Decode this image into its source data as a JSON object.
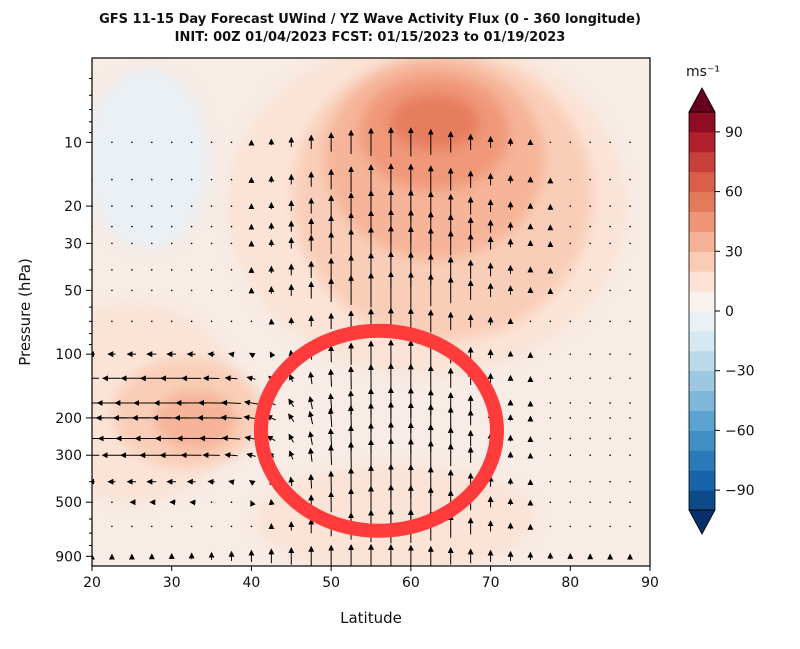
{
  "chart_data": {
    "type": "heatmap",
    "title": "GFS 11-15 Day Forecast UWind / YZ Wave Activity Flux (0 - 360 longitude)",
    "subtitle": "INIT: 00Z 01/04/2023    FCST: 01/15/2023 to 01/19/2023",
    "xlabel": "Latitude",
    "ylabel": "Pressure (hPa)",
    "x_ticks": [
      "20",
      "30",
      "40",
      "50",
      "60",
      "70",
      "80",
      "90"
    ],
    "xlim": [
      20,
      90
    ],
    "y_ticks": [
      {
        "value": 10,
        "label": "10"
      },
      {
        "value": 20,
        "label": "20"
      },
      {
        "value": 30,
        "label": "30"
      },
      {
        "value": 50,
        "label": "50"
      },
      {
        "value": 100,
        "label": "100"
      },
      {
        "value": 200,
        "label": "200"
      },
      {
        "value": 300,
        "label": "300"
      },
      {
        "value": 500,
        "label": "500"
      },
      {
        "value": 900,
        "label": "900"
      }
    ],
    "ylim": [
      1000,
      4
    ],
    "y_scale": "log",
    "colorbar": {
      "unit": "ms⁻¹",
      "range": [
        -100,
        100
      ],
      "ticks": [
        "90",
        "60",
        "30",
        "0",
        "−30",
        "−60",
        "−90"
      ]
    },
    "u_wind_maxima": [
      {
        "lat": 63,
        "p": 8,
        "value": 60
      },
      {
        "lat": 33,
        "p": 200,
        "value": 45
      },
      {
        "lat": 20,
        "p": 150,
        "value": 30
      }
    ],
    "u_wind_minima": [
      {
        "lat": 27,
        "p": 12,
        "value": -5
      }
    ],
    "annotation": {
      "shape": "circle",
      "color": "#ff3b3b",
      "center_lat": 56,
      "center_p": 230
    }
  }
}
